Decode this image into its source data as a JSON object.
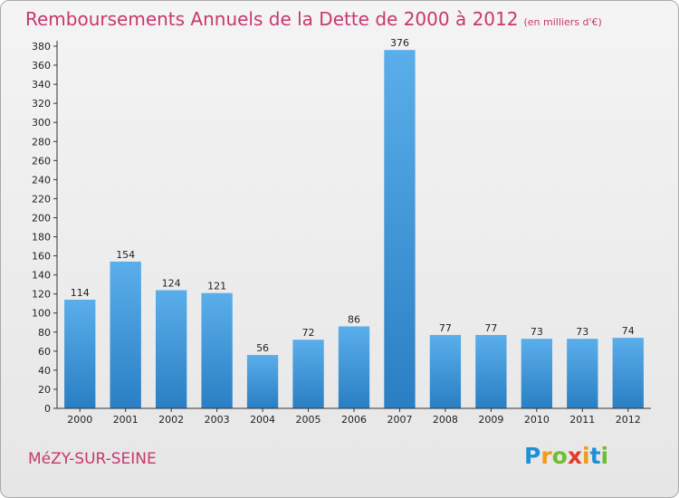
{
  "title": "Remboursements Annuels de la Dette de 2000 à 2012",
  "unit_label": "(en milliers d'€)",
  "commune": "MéZY-SUR-SEINE",
  "logo": {
    "text": "Proxiti",
    "letters": [
      {
        "ch": "P",
        "color": "#1e90d6"
      },
      {
        "ch": "r",
        "color": "#f29a1a"
      },
      {
        "ch": "o",
        "color": "#6cbf2e"
      },
      {
        "ch": "x",
        "color": "#e23b2a"
      },
      {
        "ch": "i",
        "color": "#f29a1a"
      },
      {
        "ch": "t",
        "color": "#1e90d6"
      },
      {
        "ch": "i",
        "color": "#6cbf2e"
      }
    ]
  },
  "colors": {
    "bar_light": "#5aaeea",
    "bar_dark": "#2a7fc4",
    "title": "#c8376e",
    "axis": "#333333"
  },
  "chart_data": {
    "type": "bar",
    "title": "Remboursements Annuels de la Dette de 2000 à 2012",
    "xlabel": "",
    "ylabel": "",
    "categories": [
      "2000",
      "2001",
      "2002",
      "2003",
      "2004",
      "2005",
      "2006",
      "2007",
      "2008",
      "2009",
      "2010",
      "2011",
      "2012"
    ],
    "values": [
      114,
      154,
      124,
      121,
      56,
      72,
      86,
      376,
      77,
      77,
      73,
      73,
      74
    ],
    "ylim": [
      0,
      380
    ],
    "ytick_step": 20,
    "grid": false,
    "data_labels": true
  }
}
